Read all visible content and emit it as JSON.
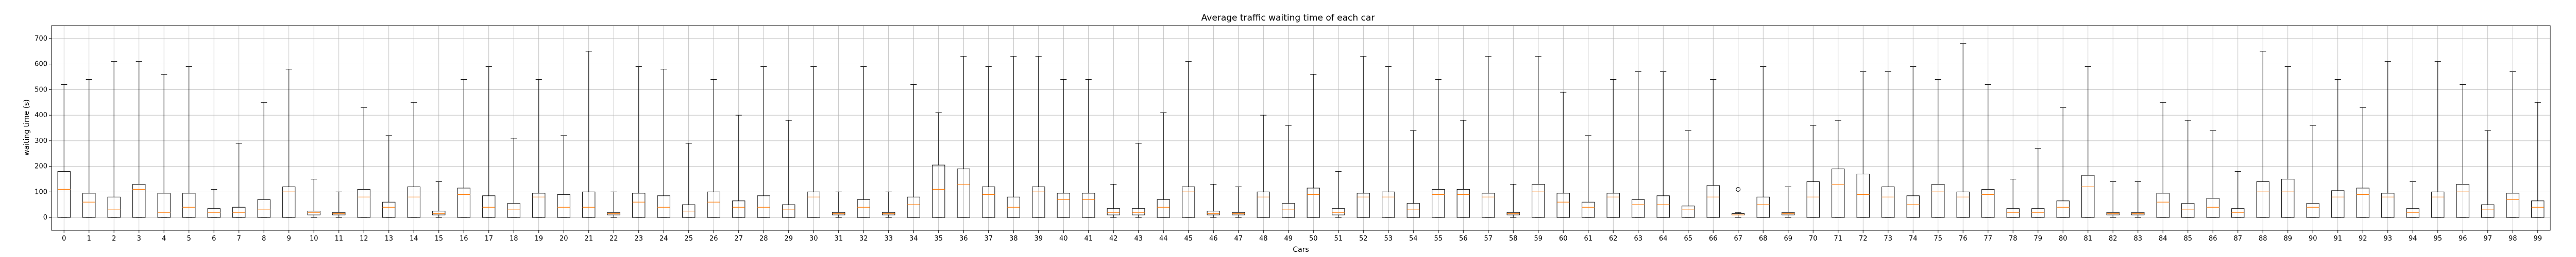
{
  "chart_data": {
    "type": "boxplot",
    "title": "Average traffic waiting time of each car",
    "xlabel": "Cars",
    "ylabel": "waiting time (s)",
    "ylim": [
      -50,
      750
    ],
    "yticks": [
      0,
      100,
      200,
      300,
      400,
      500,
      600,
      700
    ],
    "grid": true,
    "colors": {
      "box": "#000000",
      "median": "#ff7f0e",
      "grid": "#b0b0b0",
      "flier": "#000000"
    },
    "categories": [
      "0",
      "1",
      "2",
      "3",
      "4",
      "5",
      "6",
      "7",
      "8",
      "9",
      "10",
      "11",
      "12",
      "13",
      "14",
      "15",
      "16",
      "17",
      "18",
      "19",
      "20",
      "21",
      "22",
      "23",
      "24",
      "25",
      "26",
      "27",
      "28",
      "29",
      "30",
      "31",
      "32",
      "33",
      "34",
      "35",
      "36",
      "37",
      "38",
      "39",
      "40",
      "41",
      "42",
      "43",
      "44",
      "45",
      "46",
      "47",
      "48",
      "49",
      "50",
      "51",
      "52",
      "53",
      "54",
      "55",
      "56",
      "57",
      "58",
      "59",
      "60",
      "61",
      "62",
      "63",
      "64",
      "65",
      "66",
      "67",
      "68",
      "69",
      "70",
      "71",
      "72",
      "73",
      "74",
      "75",
      "76",
      "77",
      "78",
      "79",
      "80",
      "81",
      "82",
      "83",
      "84",
      "85",
      "86",
      "87",
      "88",
      "89",
      "90",
      "91",
      "92",
      "93",
      "94",
      "95",
      "96",
      "97",
      "98",
      "99"
    ],
    "boxes": [
      {
        "whislo": 0,
        "q1": 0,
        "med": 110,
        "q3": 180,
        "whishi": 520
      },
      {
        "whislo": 0,
        "q1": 0,
        "med": 60,
        "q3": 95,
        "whishi": 540
      },
      {
        "whislo": 0,
        "q1": 0,
        "med": 30,
        "q3": 80,
        "whishi": 610
      },
      {
        "whislo": 0,
        "q1": 0,
        "med": 110,
        "q3": 130,
        "whishi": 610
      },
      {
        "whislo": 0,
        "q1": 0,
        "med": 20,
        "q3": 95,
        "whishi": 560
      },
      {
        "whislo": 0,
        "q1": 0,
        "med": 40,
        "q3": 95,
        "whishi": 590
      },
      {
        "whislo": 0,
        "q1": 0,
        "med": 20,
        "q3": 35,
        "whishi": 110
      },
      {
        "whislo": 0,
        "q1": 0,
        "med": 20,
        "q3": 40,
        "whishi": 290
      },
      {
        "whislo": 0,
        "q1": 0,
        "med": 30,
        "q3": 70,
        "whishi": 450
      },
      {
        "whislo": 0,
        "q1": 0,
        "med": 100,
        "q3": 120,
        "whishi": 580
      },
      {
        "whislo": 0,
        "q1": 10,
        "med": 20,
        "q3": 25,
        "whishi": 150
      },
      {
        "whislo": 0,
        "q1": 10,
        "med": 15,
        "q3": 20,
        "whishi": 100
      },
      {
        "whislo": 0,
        "q1": 0,
        "med": 80,
        "q3": 110,
        "whishi": 430
      },
      {
        "whislo": 0,
        "q1": 0,
        "med": 40,
        "q3": 60,
        "whishi": 320
      },
      {
        "whislo": 0,
        "q1": 0,
        "med": 80,
        "q3": 120,
        "whishi": 450
      },
      {
        "whislo": 0,
        "q1": 10,
        "med": 15,
        "q3": 25,
        "whishi": 140
      },
      {
        "whislo": 0,
        "q1": 0,
        "med": 90,
        "q3": 115,
        "whishi": 540
      },
      {
        "whislo": 0,
        "q1": 0,
        "med": 40,
        "q3": 85,
        "whishi": 590
      },
      {
        "whislo": 0,
        "q1": 0,
        "med": 30,
        "q3": 55,
        "whishi": 310
      },
      {
        "whislo": 0,
        "q1": 0,
        "med": 80,
        "q3": 95,
        "whishi": 540
      },
      {
        "whislo": 0,
        "q1": 0,
        "med": 40,
        "q3": 90,
        "whishi": 320
      },
      {
        "whislo": 0,
        "q1": 0,
        "med": 40,
        "q3": 100,
        "whishi": 650
      },
      {
        "whislo": 0,
        "q1": 10,
        "med": 15,
        "q3": 20,
        "whishi": 100
      },
      {
        "whislo": 0,
        "q1": 0,
        "med": 60,
        "q3": 95,
        "whishi": 590
      },
      {
        "whislo": 0,
        "q1": 0,
        "med": 40,
        "q3": 85,
        "whishi": 580
      },
      {
        "whislo": 0,
        "q1": 0,
        "med": 25,
        "q3": 50,
        "whishi": 290
      },
      {
        "whislo": 0,
        "q1": 0,
        "med": 60,
        "q3": 100,
        "whishi": 540
      },
      {
        "whislo": 0,
        "q1": 0,
        "med": 40,
        "q3": 65,
        "whishi": 400
      },
      {
        "whislo": 0,
        "q1": 0,
        "med": 40,
        "q3": 85,
        "whishi": 590
      },
      {
        "whislo": 0,
        "q1": 0,
        "med": 30,
        "q3": 50,
        "whishi": 380
      },
      {
        "whislo": 0,
        "q1": 0,
        "med": 80,
        "q3": 100,
        "whishi": 590
      },
      {
        "whislo": 0,
        "q1": 10,
        "med": 15,
        "q3": 20,
        "whishi": 100
      },
      {
        "whislo": 0,
        "q1": 0,
        "med": 40,
        "q3": 70,
        "whishi": 590
      },
      {
        "whislo": 0,
        "q1": 10,
        "med": 15,
        "q3": 20,
        "whishi": 100
      },
      {
        "whislo": 0,
        "q1": 0,
        "med": 50,
        "q3": 80,
        "whishi": 520
      },
      {
        "whislo": 0,
        "q1": 0,
        "med": 110,
        "q3": 205,
        "whishi": 410
      },
      {
        "whislo": 0,
        "q1": 0,
        "med": 130,
        "q3": 190,
        "whishi": 630
      },
      {
        "whislo": 0,
        "q1": 0,
        "med": 90,
        "q3": 120,
        "whishi": 590
      },
      {
        "whislo": 0,
        "q1": 0,
        "med": 40,
        "q3": 80,
        "whishi": 630
      },
      {
        "whislo": 0,
        "q1": 0,
        "med": 100,
        "q3": 120,
        "whishi": 630
      },
      {
        "whislo": 0,
        "q1": 0,
        "med": 70,
        "q3": 95,
        "whishi": 540
      },
      {
        "whislo": 0,
        "q1": 0,
        "med": 70,
        "q3": 95,
        "whishi": 540
      },
      {
        "whislo": 0,
        "q1": 10,
        "med": 20,
        "q3": 35,
        "whishi": 130
      },
      {
        "whislo": 0,
        "q1": 10,
        "med": 20,
        "q3": 35,
        "whishi": 290
      },
      {
        "whislo": 0,
        "q1": 0,
        "med": 40,
        "q3": 70,
        "whishi": 410
      },
      {
        "whislo": 0,
        "q1": 0,
        "med": 100,
        "q3": 120,
        "whishi": 610
      },
      {
        "whislo": 0,
        "q1": 10,
        "med": 15,
        "q3": 25,
        "whishi": 130
      },
      {
        "whislo": 0,
        "q1": 10,
        "med": 15,
        "q3": 20,
        "whishi": 120
      },
      {
        "whislo": 0,
        "q1": 0,
        "med": 80,
        "q3": 100,
        "whishi": 400
      },
      {
        "whislo": 0,
        "q1": 0,
        "med": 30,
        "q3": 55,
        "whishi": 360
      },
      {
        "whislo": 0,
        "q1": 0,
        "med": 90,
        "q3": 115,
        "whishi": 560
      },
      {
        "whislo": 0,
        "q1": 10,
        "med": 20,
        "q3": 35,
        "whishi": 180
      },
      {
        "whislo": 0,
        "q1": 0,
        "med": 80,
        "q3": 95,
        "whishi": 630
      },
      {
        "whislo": 0,
        "q1": 0,
        "med": 80,
        "q3": 100,
        "whishi": 590
      },
      {
        "whislo": 0,
        "q1": 0,
        "med": 30,
        "q3": 55,
        "whishi": 340
      },
      {
        "whislo": 0,
        "q1": 0,
        "med": 90,
        "q3": 110,
        "whishi": 540
      },
      {
        "whislo": 0,
        "q1": 0,
        "med": 90,
        "q3": 110,
        "whishi": 380
      },
      {
        "whislo": 0,
        "q1": 0,
        "med": 80,
        "q3": 95,
        "whishi": 630
      },
      {
        "whislo": 0,
        "q1": 10,
        "med": 15,
        "q3": 20,
        "whishi": 130
      },
      {
        "whislo": 0,
        "q1": 0,
        "med": 100,
        "q3": 130,
        "whishi": 630
      },
      {
        "whislo": 0,
        "q1": 0,
        "med": 60,
        "q3": 95,
        "whishi": 490
      },
      {
        "whislo": 0,
        "q1": 0,
        "med": 40,
        "q3": 60,
        "whishi": 320
      },
      {
        "whislo": 0,
        "q1": 0,
        "med": 80,
        "q3": 95,
        "whishi": 540
      },
      {
        "whislo": 0,
        "q1": 0,
        "med": 50,
        "q3": 70,
        "whishi": 570
      },
      {
        "whislo": 0,
        "q1": 0,
        "med": 50,
        "q3": 85,
        "whishi": 570
      },
      {
        "whislo": 0,
        "q1": 0,
        "med": 30,
        "q3": 45,
        "whishi": 340
      },
      {
        "whislo": 0,
        "q1": 0,
        "med": 80,
        "q3": 125,
        "whishi": 540
      },
      {
        "whislo": 0,
        "q1": 10,
        "med": 10,
        "q3": 15,
        "whishi": 20,
        "fliers": [
          110
        ]
      },
      {
        "whislo": 0,
        "q1": 0,
        "med": 50,
        "q3": 80,
        "whishi": 590
      },
      {
        "whislo": 0,
        "q1": 10,
        "med": 15,
        "q3": 20,
        "whishi": 120
      },
      {
        "whislo": 0,
        "q1": 0,
        "med": 80,
        "q3": 140,
        "whishi": 360
      },
      {
        "whislo": 0,
        "q1": 0,
        "med": 130,
        "q3": 190,
        "whishi": 380
      },
      {
        "whislo": 0,
        "q1": 0,
        "med": 90,
        "q3": 170,
        "whishi": 570
      },
      {
        "whislo": 0,
        "q1": 0,
        "med": 80,
        "q3": 120,
        "whishi": 570
      },
      {
        "whislo": 0,
        "q1": 0,
        "med": 50,
        "q3": 85,
        "whishi": 590
      },
      {
        "whislo": 0,
        "q1": 0,
        "med": 100,
        "q3": 130,
        "whishi": 540
      },
      {
        "whislo": 0,
        "q1": 0,
        "med": 80,
        "q3": 100,
        "whishi": 680
      },
      {
        "whislo": 0,
        "q1": 0,
        "med": 90,
        "q3": 110,
        "whishi": 520
      },
      {
        "whislo": 0,
        "q1": 0,
        "med": 20,
        "q3": 35,
        "whishi": 150
      },
      {
        "whislo": 0,
        "q1": 0,
        "med": 20,
        "q3": 35,
        "whishi": 270
      },
      {
        "whislo": 0,
        "q1": 0,
        "med": 40,
        "q3": 65,
        "whishi": 430
      },
      {
        "whislo": 0,
        "q1": 0,
        "med": 120,
        "q3": 165,
        "whishi": 590
      },
      {
        "whislo": 0,
        "q1": 10,
        "med": 15,
        "q3": 20,
        "whishi": 140
      },
      {
        "whislo": 0,
        "q1": 10,
        "med": 15,
        "q3": 20,
        "whishi": 140
      },
      {
        "whislo": 0,
        "q1": 0,
        "med": 60,
        "q3": 95,
        "whishi": 450
      },
      {
        "whislo": 0,
        "q1": 0,
        "med": 30,
        "q3": 55,
        "whishi": 380
      },
      {
        "whislo": 0,
        "q1": 0,
        "med": 40,
        "q3": 75,
        "whishi": 340
      },
      {
        "whislo": 0,
        "q1": 0,
        "med": 20,
        "q3": 35,
        "whishi": 180
      },
      {
        "whislo": 0,
        "q1": 0,
        "med": 100,
        "q3": 140,
        "whishi": 650
      },
      {
        "whislo": 0,
        "q1": 0,
        "med": 100,
        "q3": 150,
        "whishi": 590
      },
      {
        "whislo": 0,
        "q1": 0,
        "med": 40,
        "q3": 55,
        "whishi": 360
      },
      {
        "whislo": 0,
        "q1": 0,
        "med": 80,
        "q3": 105,
        "whishi": 540
      },
      {
        "whislo": 0,
        "q1": 0,
        "med": 90,
        "q3": 115,
        "whishi": 430
      },
      {
        "whislo": 0,
        "q1": 0,
        "med": 80,
        "q3": 95,
        "whishi": 610
      },
      {
        "whislo": 0,
        "q1": 0,
        "med": 20,
        "q3": 35,
        "whishi": 140
      },
      {
        "whislo": 0,
        "q1": 0,
        "med": 80,
        "q3": 100,
        "whishi": 610
      },
      {
        "whislo": 0,
        "q1": 0,
        "med": 100,
        "q3": 130,
        "whishi": 520
      },
      {
        "whislo": 0,
        "q1": 0,
        "med": 30,
        "q3": 50,
        "whishi": 340
      },
      {
        "whislo": 0,
        "q1": 0,
        "med": 70,
        "q3": 95,
        "whishi": 570
      },
      {
        "whislo": 0,
        "q1": 0,
        "med": 40,
        "q3": 65,
        "whishi": 450
      }
    ]
  }
}
